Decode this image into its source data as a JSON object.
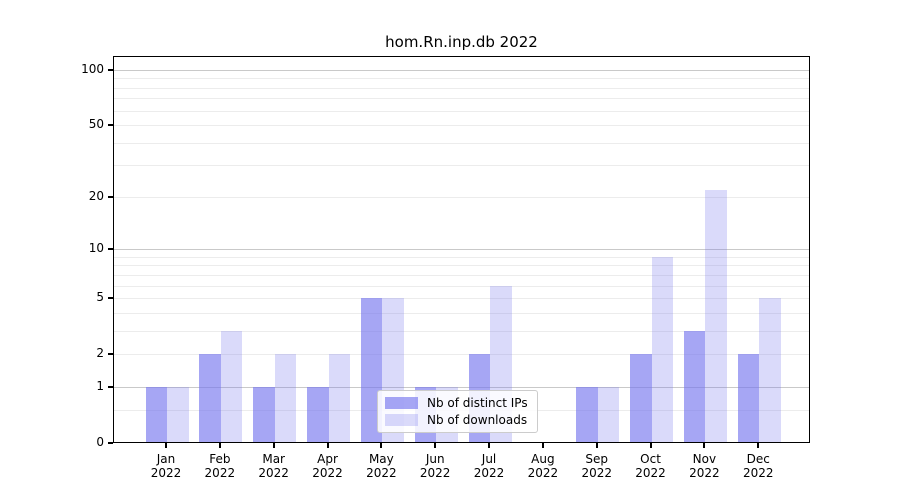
{
  "chart_data": {
    "type": "bar",
    "title": "hom.Rn.inp.db 2022",
    "categories": [
      "Jan",
      "Feb",
      "Mar",
      "Apr",
      "May",
      "Jun",
      "Jul",
      "Aug",
      "Sep",
      "Oct",
      "Nov",
      "Dec"
    ],
    "category_year": "2022",
    "series": [
      {
        "name": "Nb of distinct IPs",
        "color": "rgba(119,119,238,0.65)",
        "values": [
          1,
          2,
          1,
          1,
          5,
          1,
          2,
          0,
          1,
          2,
          3,
          2
        ]
      },
      {
        "name": "Nb of downloads",
        "color": "rgba(119,119,238,0.27)",
        "values": [
          1,
          3,
          2,
          2,
          5,
          1,
          6,
          0,
          1,
          9,
          22,
          5
        ]
      }
    ],
    "y_axis": {
      "scale": "log1p",
      "min": 0,
      "max": 100,
      "ticks": [
        0,
        1,
        2,
        5,
        10,
        20,
        50,
        100
      ],
      "major_gridlines": [
        1,
        10,
        100
      ],
      "minor_gridlines": [
        0.5,
        2,
        3,
        4,
        5,
        6,
        7,
        8,
        9,
        20,
        30,
        40,
        50,
        60,
        70,
        80,
        90
      ]
    },
    "legend_position": "bottom-center",
    "grid": true,
    "colors": {
      "major_grid": "#c9c9c9",
      "minor_grid": "#ececec",
      "spine": "#000000",
      "background": "#ffffff"
    }
  }
}
